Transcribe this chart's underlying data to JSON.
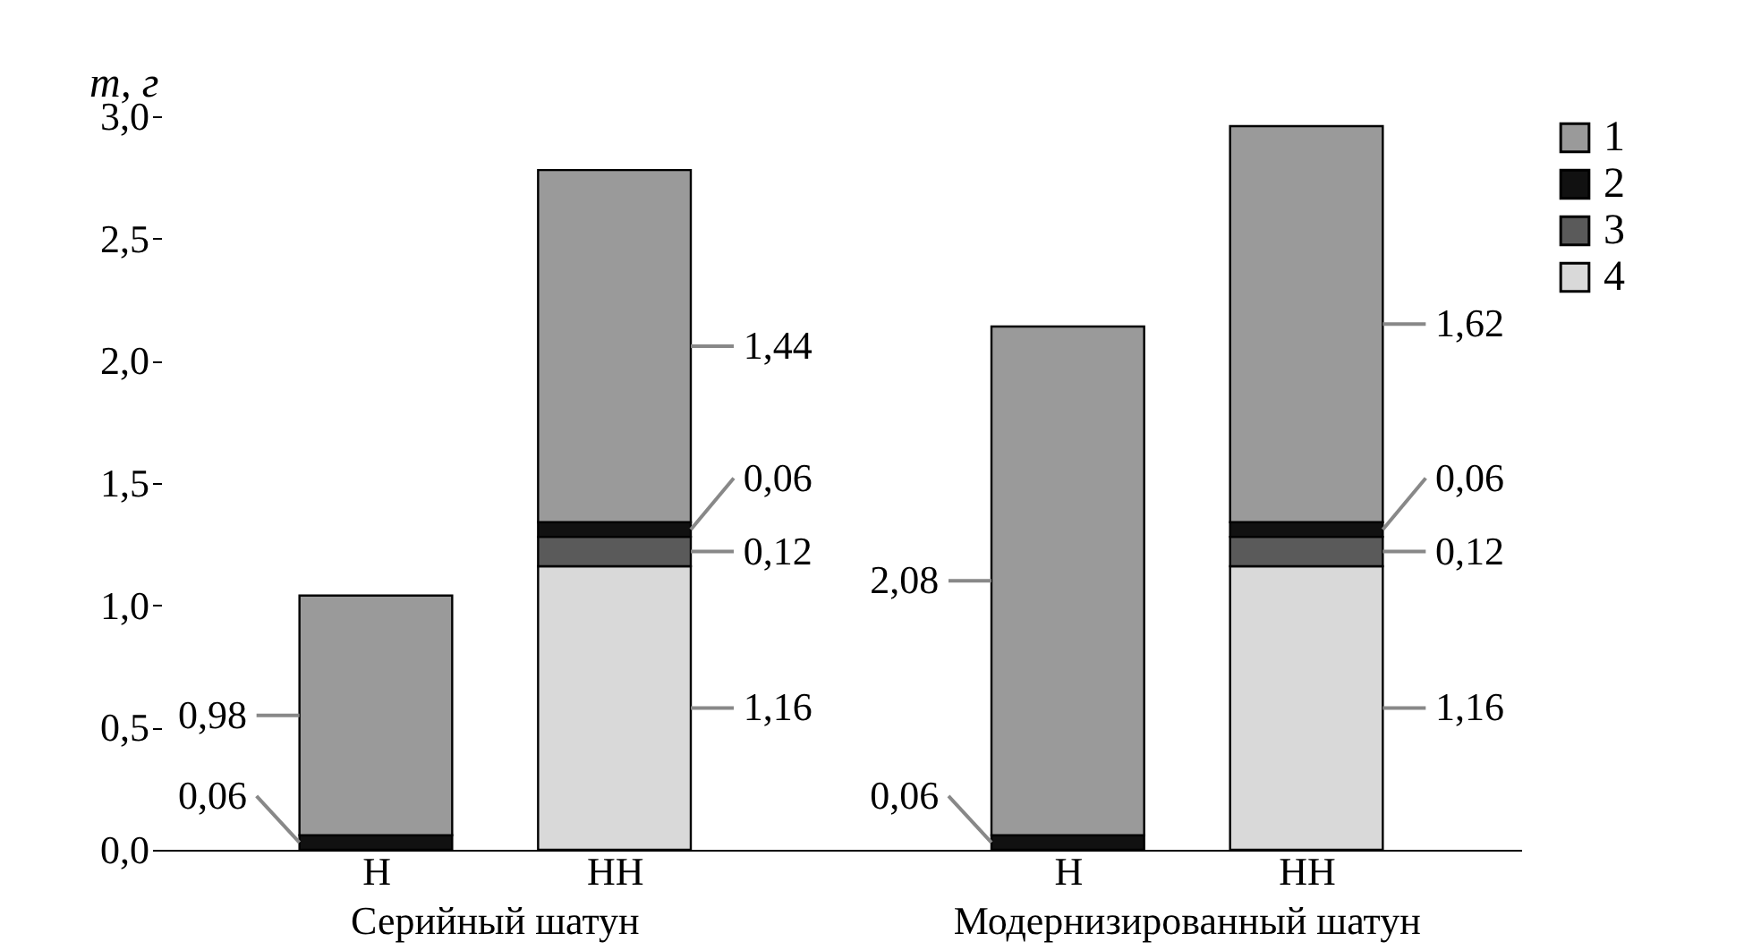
{
  "chart_data": {
    "type": "bar",
    "stacked": true,
    "ylabel": "m, г",
    "categories": [
      "Н",
      "НН",
      "Н",
      "НН"
    ],
    "annotations": [
      "Серийный шатун",
      "Модернизированный шатун"
    ],
    "series": [
      {
        "name": "4",
        "color": "#d9d9d9",
        "values": [
          null,
          1.16,
          null,
          1.16
        ],
        "value_labels": [
          null,
          "1,16",
          null,
          "1,16"
        ]
      },
      {
        "name": "3",
        "color": "#5a5a5a",
        "values": [
          null,
          0.12,
          null,
          0.12
        ],
        "value_labels": [
          null,
          "0,12",
          null,
          "0,12"
        ]
      },
      {
        "name": "2",
        "color": "#111111",
        "values": [
          0.06,
          0.06,
          0.06,
          0.06
        ],
        "value_labels": [
          "0,06",
          "0,06",
          "0,06",
          "0,06"
        ]
      },
      {
        "name": "1",
        "color": "#9a9a9a",
        "values": [
          0.98,
          1.44,
          2.08,
          1.62
        ],
        "value_labels": [
          "0,98",
          "1,44",
          "2,08",
          "1,62"
        ]
      }
    ],
    "ylim": [
      0,
      3
    ],
    "yticks": [
      {
        "value": 0,
        "label": "0,0"
      },
      {
        "value": 0.5,
        "label": "0,5"
      },
      {
        "value": 1,
        "label": "1,0"
      },
      {
        "value": 1.5,
        "label": "1,5"
      },
      {
        "value": 2,
        "label": "2,0"
      },
      {
        "value": 2.5,
        "label": "2,5"
      },
      {
        "value": 3,
        "label": "3,0"
      }
    ],
    "legend": "right",
    "grid": false
  }
}
